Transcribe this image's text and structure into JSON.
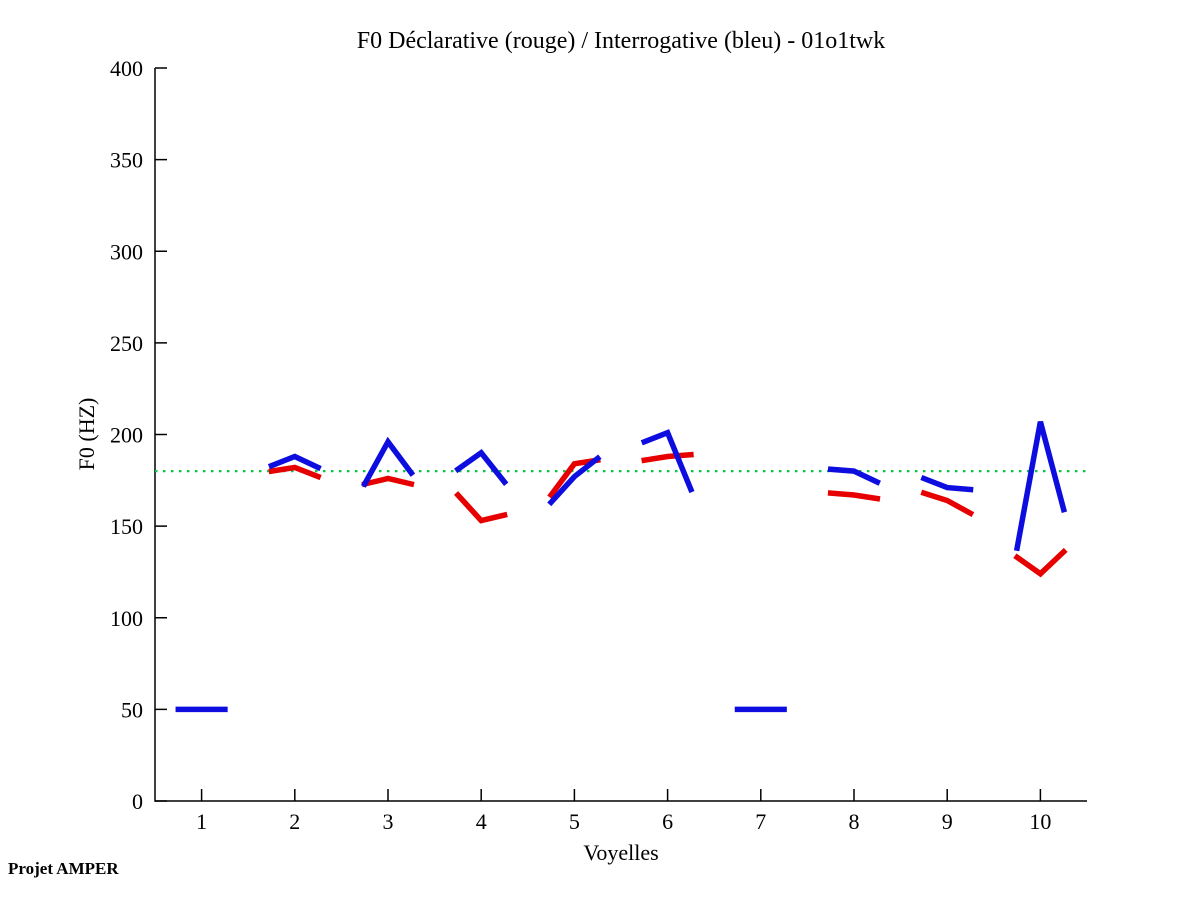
{
  "annotation": "Projet AMPER",
  "chart_data": {
    "type": "line",
    "title": "F0 Déclarative (rouge) / Interrogative (bleu) - 01o1twk",
    "xlabel": "Voyelles",
    "ylabel": "F0 (HZ)",
    "xlim": [
      0.5,
      10.5
    ],
    "ylim": [
      0,
      400
    ],
    "xticks": [
      1,
      2,
      3,
      4,
      5,
      6,
      7,
      8,
      9,
      10
    ],
    "yticks": [
      0,
      50,
      100,
      150,
      200,
      250,
      300,
      350,
      400
    ],
    "grid": false,
    "legend_position": "none (encoded in title)",
    "point_offsets": [
      -0.25,
      0,
      0.25
    ],
    "reference_line": {
      "y": 180,
      "color": "#00cc44",
      "style": "dotted"
    },
    "axis_color": "#000000",
    "series": [
      {
        "name": "Déclarative (rouge)",
        "color": "#e60000",
        "values_by_vowel": [
          null,
          [
            180,
            182,
            177
          ],
          [
            173,
            176,
            173
          ],
          [
            167,
            153,
            156
          ],
          [
            167,
            184,
            186
          ],
          [
            186,
            188,
            189
          ],
          null,
          [
            168,
            167,
            165
          ],
          [
            168,
            164,
            157
          ],
          [
            133,
            124,
            136
          ]
        ]
      },
      {
        "name": "Interrogative (bleu)",
        "color": "#0d0de0",
        "values_by_vowel": [
          [
            50,
            50,
            50
          ],
          [
            183,
            188,
            182
          ],
          [
            173,
            196,
            179
          ],
          [
            181,
            190,
            174
          ],
          [
            163,
            177,
            187
          ],
          [
            196,
            201,
            170
          ],
          [
            50,
            50,
            50
          ],
          [
            181,
            180,
            174
          ],
          [
            176,
            171,
            170
          ],
          [
            138,
            207,
            159
          ]
        ]
      }
    ]
  }
}
